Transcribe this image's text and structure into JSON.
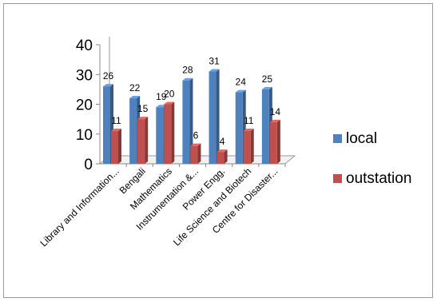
{
  "chart_data": {
    "type": "bar",
    "categories": [
      "Library and Information...",
      "Bengali",
      "Mathematics",
      "Instrumentation &...",
      "Power Engg.",
      "Life Science and Biotech",
      "Centre for Disaster..."
    ],
    "series": [
      {
        "name": "local",
        "values": [
          26,
          22,
          19,
          28,
          31,
          24,
          25
        ],
        "color": "#4f81bd"
      },
      {
        "name": "outstation",
        "values": [
          11,
          15,
          20,
          6,
          4,
          11,
          14
        ],
        "color": "#c0504d"
      }
    ],
    "ylim": [
      0,
      40
    ],
    "yticks": [
      "0",
      "10",
      "20",
      "30",
      "40"
    ],
    "grid": false,
    "legend_position": "right",
    "style": "3d-clustered-bar"
  }
}
